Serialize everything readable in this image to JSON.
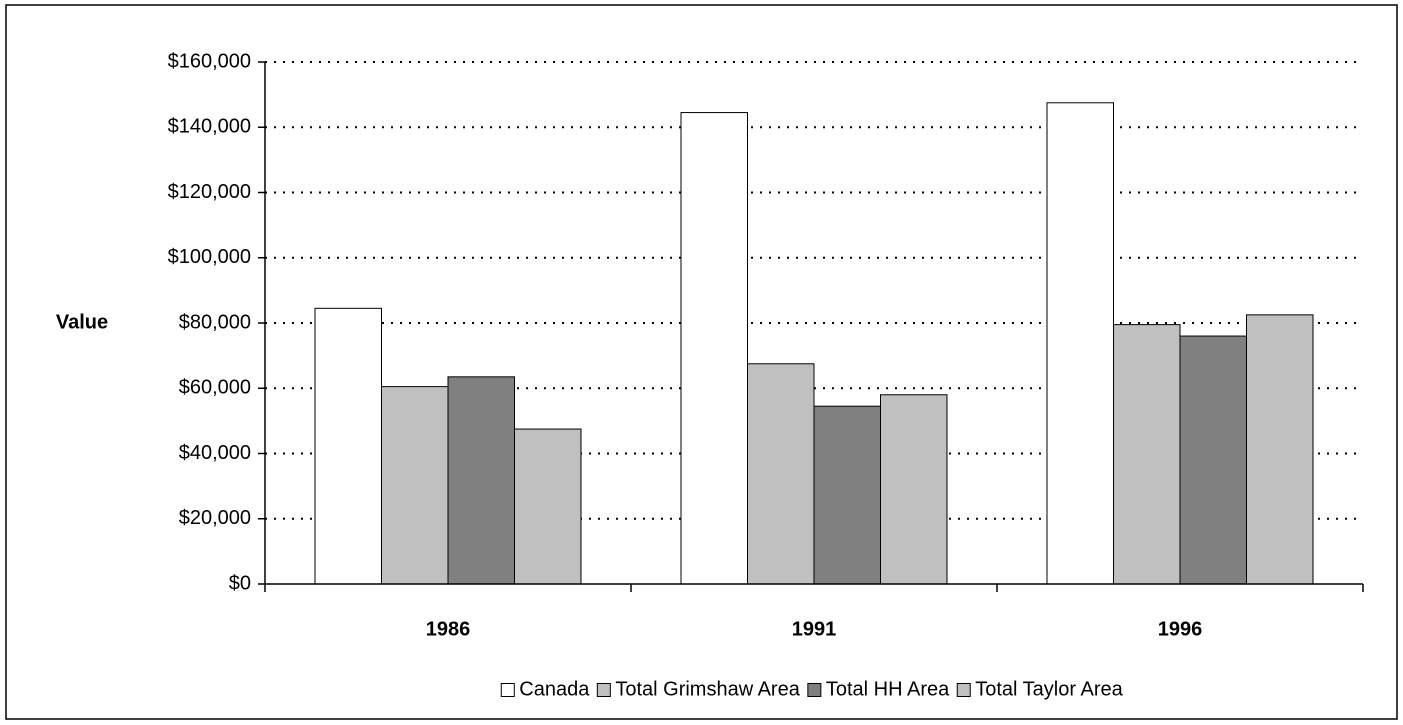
{
  "chart_data": {
    "type": "bar",
    "y_label": "Value",
    "categories": [
      "1986",
      "1991",
      "1996"
    ],
    "series": [
      {
        "name": "Canada",
        "color": "#ffffff",
        "values": [
          84500,
          144500,
          147500
        ]
      },
      {
        "name": "Total Grimshaw Area",
        "color": "#c0c0c0",
        "values": [
          60500,
          67500,
          79500
        ]
      },
      {
        "name": "Total HH Area",
        "color": "#808080",
        "values": [
          63500,
          54500,
          76000
        ]
      },
      {
        "name": "Total Taylor Area",
        "color": "#c0c0c0",
        "values": [
          47500,
          58000,
          82500
        ]
      }
    ],
    "ylim": [
      0,
      160000
    ],
    "yticks": [
      {
        "value": 0,
        "label": "$0"
      },
      {
        "value": 20000,
        "label": "$20,000"
      },
      {
        "value": 40000,
        "label": "$40,000"
      },
      {
        "value": 60000,
        "label": "$60,000"
      },
      {
        "value": 80000,
        "label": "$80,000"
      },
      {
        "value": 100000,
        "label": "$100,000"
      },
      {
        "value": 120000,
        "label": "$120,000"
      },
      {
        "value": 140000,
        "label": "$140,000"
      },
      {
        "value": 160000,
        "label": "$160,000"
      }
    ],
    "grid": true,
    "legend": "bottom"
  }
}
